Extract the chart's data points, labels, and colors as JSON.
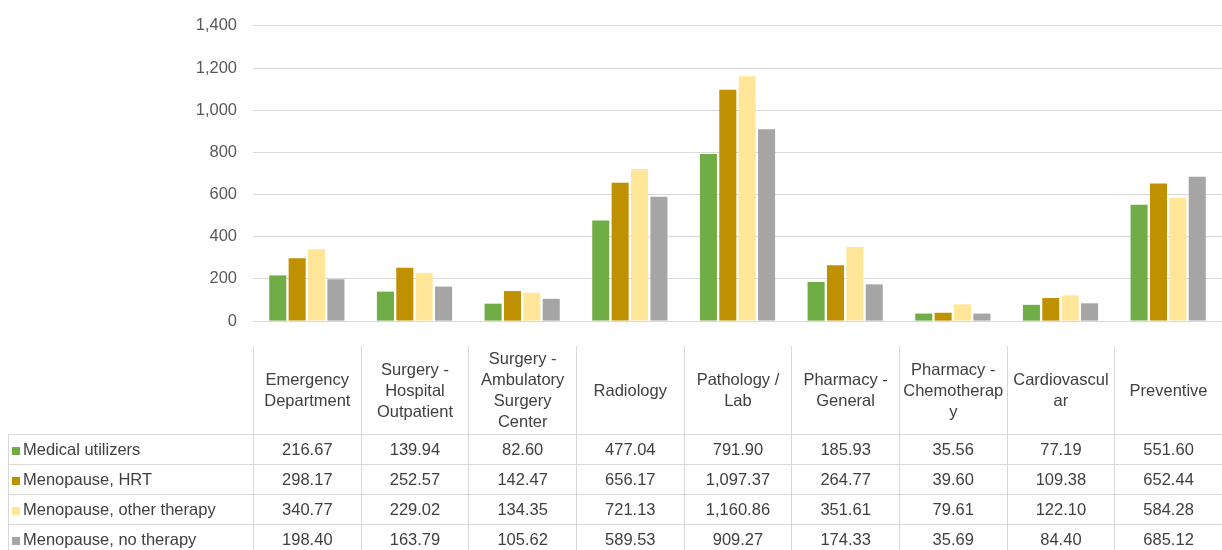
{
  "chart_data": {
    "type": "bar",
    "categories": [
      "Emergency Department",
      "Surgery - Hospital Outpatient",
      "Surgery - Ambulatory Surgery Center",
      "Radiology",
      "Pathology / Lab",
      "Pharmacy - General",
      "Pharmacy - Chemotherapy",
      "Cardiovascular",
      "Preventive"
    ],
    "series": [
      {
        "name": "Medical utilizers",
        "color": "#70ad47",
        "values": [
          216.67,
          139.94,
          82.6,
          477.04,
          791.9,
          185.93,
          35.56,
          77.19,
          551.6
        ],
        "value_labels": [
          "216.67",
          "139.94",
          "82.60",
          "477.04",
          "791.90",
          "185.93",
          "35.56",
          "77.19",
          "551.60"
        ]
      },
      {
        "name": "Menopause, HRT",
        "color": "#bf9000",
        "values": [
          298.17,
          252.57,
          142.47,
          656.17,
          1097.37,
          264.77,
          39.6,
          109.38,
          652.44
        ],
        "value_labels": [
          "298.17",
          "252.57",
          "142.47",
          "656.17",
          "1,097.37",
          "264.77",
          "39.60",
          "109.38",
          "652.44"
        ]
      },
      {
        "name": "Menopause, other therapy",
        "color": "#ffe699",
        "values": [
          340.77,
          229.02,
          134.35,
          721.13,
          1160.86,
          351.61,
          79.61,
          122.1,
          584.28
        ],
        "value_labels": [
          "340.77",
          "229.02",
          "134.35",
          "721.13",
          "1,160.86",
          "351.61",
          "79.61",
          "122.10",
          "584.28"
        ]
      },
      {
        "name": "Menopause, no therapy",
        "color": "#a5a5a5",
        "values": [
          198.4,
          163.79,
          105.62,
          589.53,
          909.27,
          174.33,
          35.69,
          84.4,
          685.12
        ],
        "value_labels": [
          "198.40",
          "163.79",
          "105.62",
          "589.53",
          "909.27",
          "174.33",
          "35.69",
          "84.40",
          "685.12"
        ]
      }
    ],
    "ylim": [
      0,
      1400
    ],
    "yticks": [
      0,
      200,
      400,
      600,
      800,
      {
        "value": 1000,
        "label": "1,000"
      },
      {
        "value": 1200,
        "label": "1,200"
      },
      {
        "value": 1400,
        "label": "1,400"
      }
    ],
    "grid": "y",
    "legend": "bottom"
  }
}
